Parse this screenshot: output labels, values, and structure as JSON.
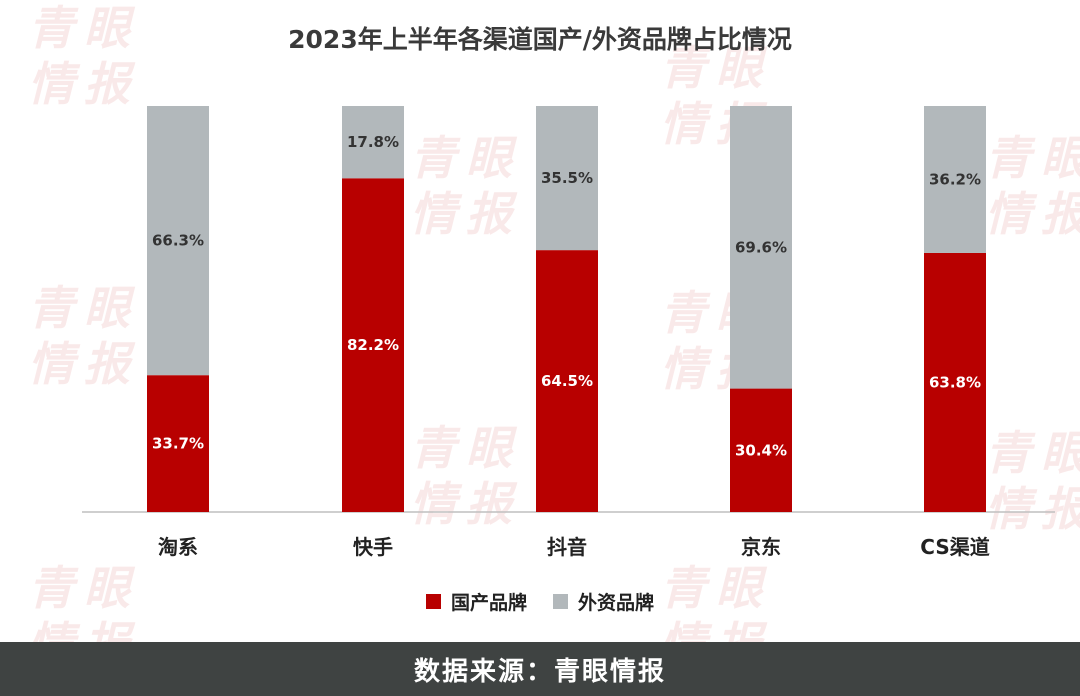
{
  "watermark": {
    "text": "青眼情报"
  },
  "footer": {
    "source_label": "数据来源：青眼情报"
  },
  "chart_data": {
    "type": "bar",
    "stacked": true,
    "title": "2023年上半年各渠道国产/外资品牌占比情况",
    "categories": [
      "淘系",
      "快手",
      "抖音",
      "京东",
      "CS渠道"
    ],
    "series": [
      {
        "name": "国产品牌",
        "color": "#b80000",
        "label_color": "#ffffff",
        "values": [
          33.7,
          82.2,
          64.5,
          30.4,
          63.8
        ],
        "labels": [
          "33.7%",
          "82.2%",
          "64.5%",
          "30.4%",
          "63.8%"
        ]
      },
      {
        "name": "外资品牌",
        "color": "#b2b8bb",
        "label_color": "#333333",
        "values": [
          66.3,
          17.8,
          35.5,
          69.6,
          36.2
        ],
        "labels": [
          "66.3%",
          "17.8%",
          "35.5%",
          "69.6%",
          "36.2%"
        ]
      }
    ],
    "ylim": [
      0,
      100
    ],
    "legend": "bottom",
    "grid": false
  }
}
